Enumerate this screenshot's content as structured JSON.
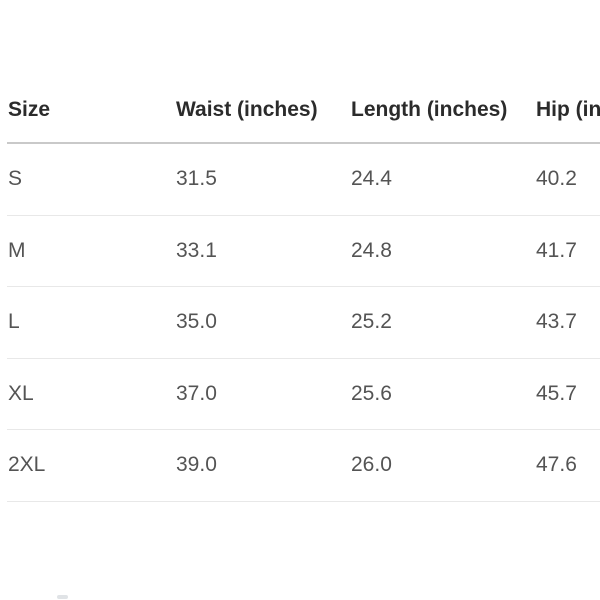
{
  "colors": {
    "background": "#ffffff",
    "header_text": "#2b2b2b",
    "body_text": "#545454",
    "header_divider": "#c9c9c9",
    "row_divider": "#e8e8e8"
  },
  "size_chart": {
    "headers": {
      "size": "Size",
      "waist": "Waist (inches)",
      "length": "Length (inches)",
      "hip": "Hip (inches)"
    },
    "rows": [
      {
        "size": "S",
        "waist": "31.5",
        "length": "24.4",
        "hip": "40.2"
      },
      {
        "size": "M",
        "waist": "33.1",
        "length": "24.8",
        "hip": "41.7"
      },
      {
        "size": "L",
        "waist": "35.0",
        "length": "25.2",
        "hip": "43.7"
      },
      {
        "size": "XL",
        "waist": "37.0",
        "length": "25.6",
        "hip": "45.7"
      },
      {
        "size": "2XL",
        "waist": "39.0",
        "length": "26.0",
        "hip": "47.6"
      }
    ]
  }
}
